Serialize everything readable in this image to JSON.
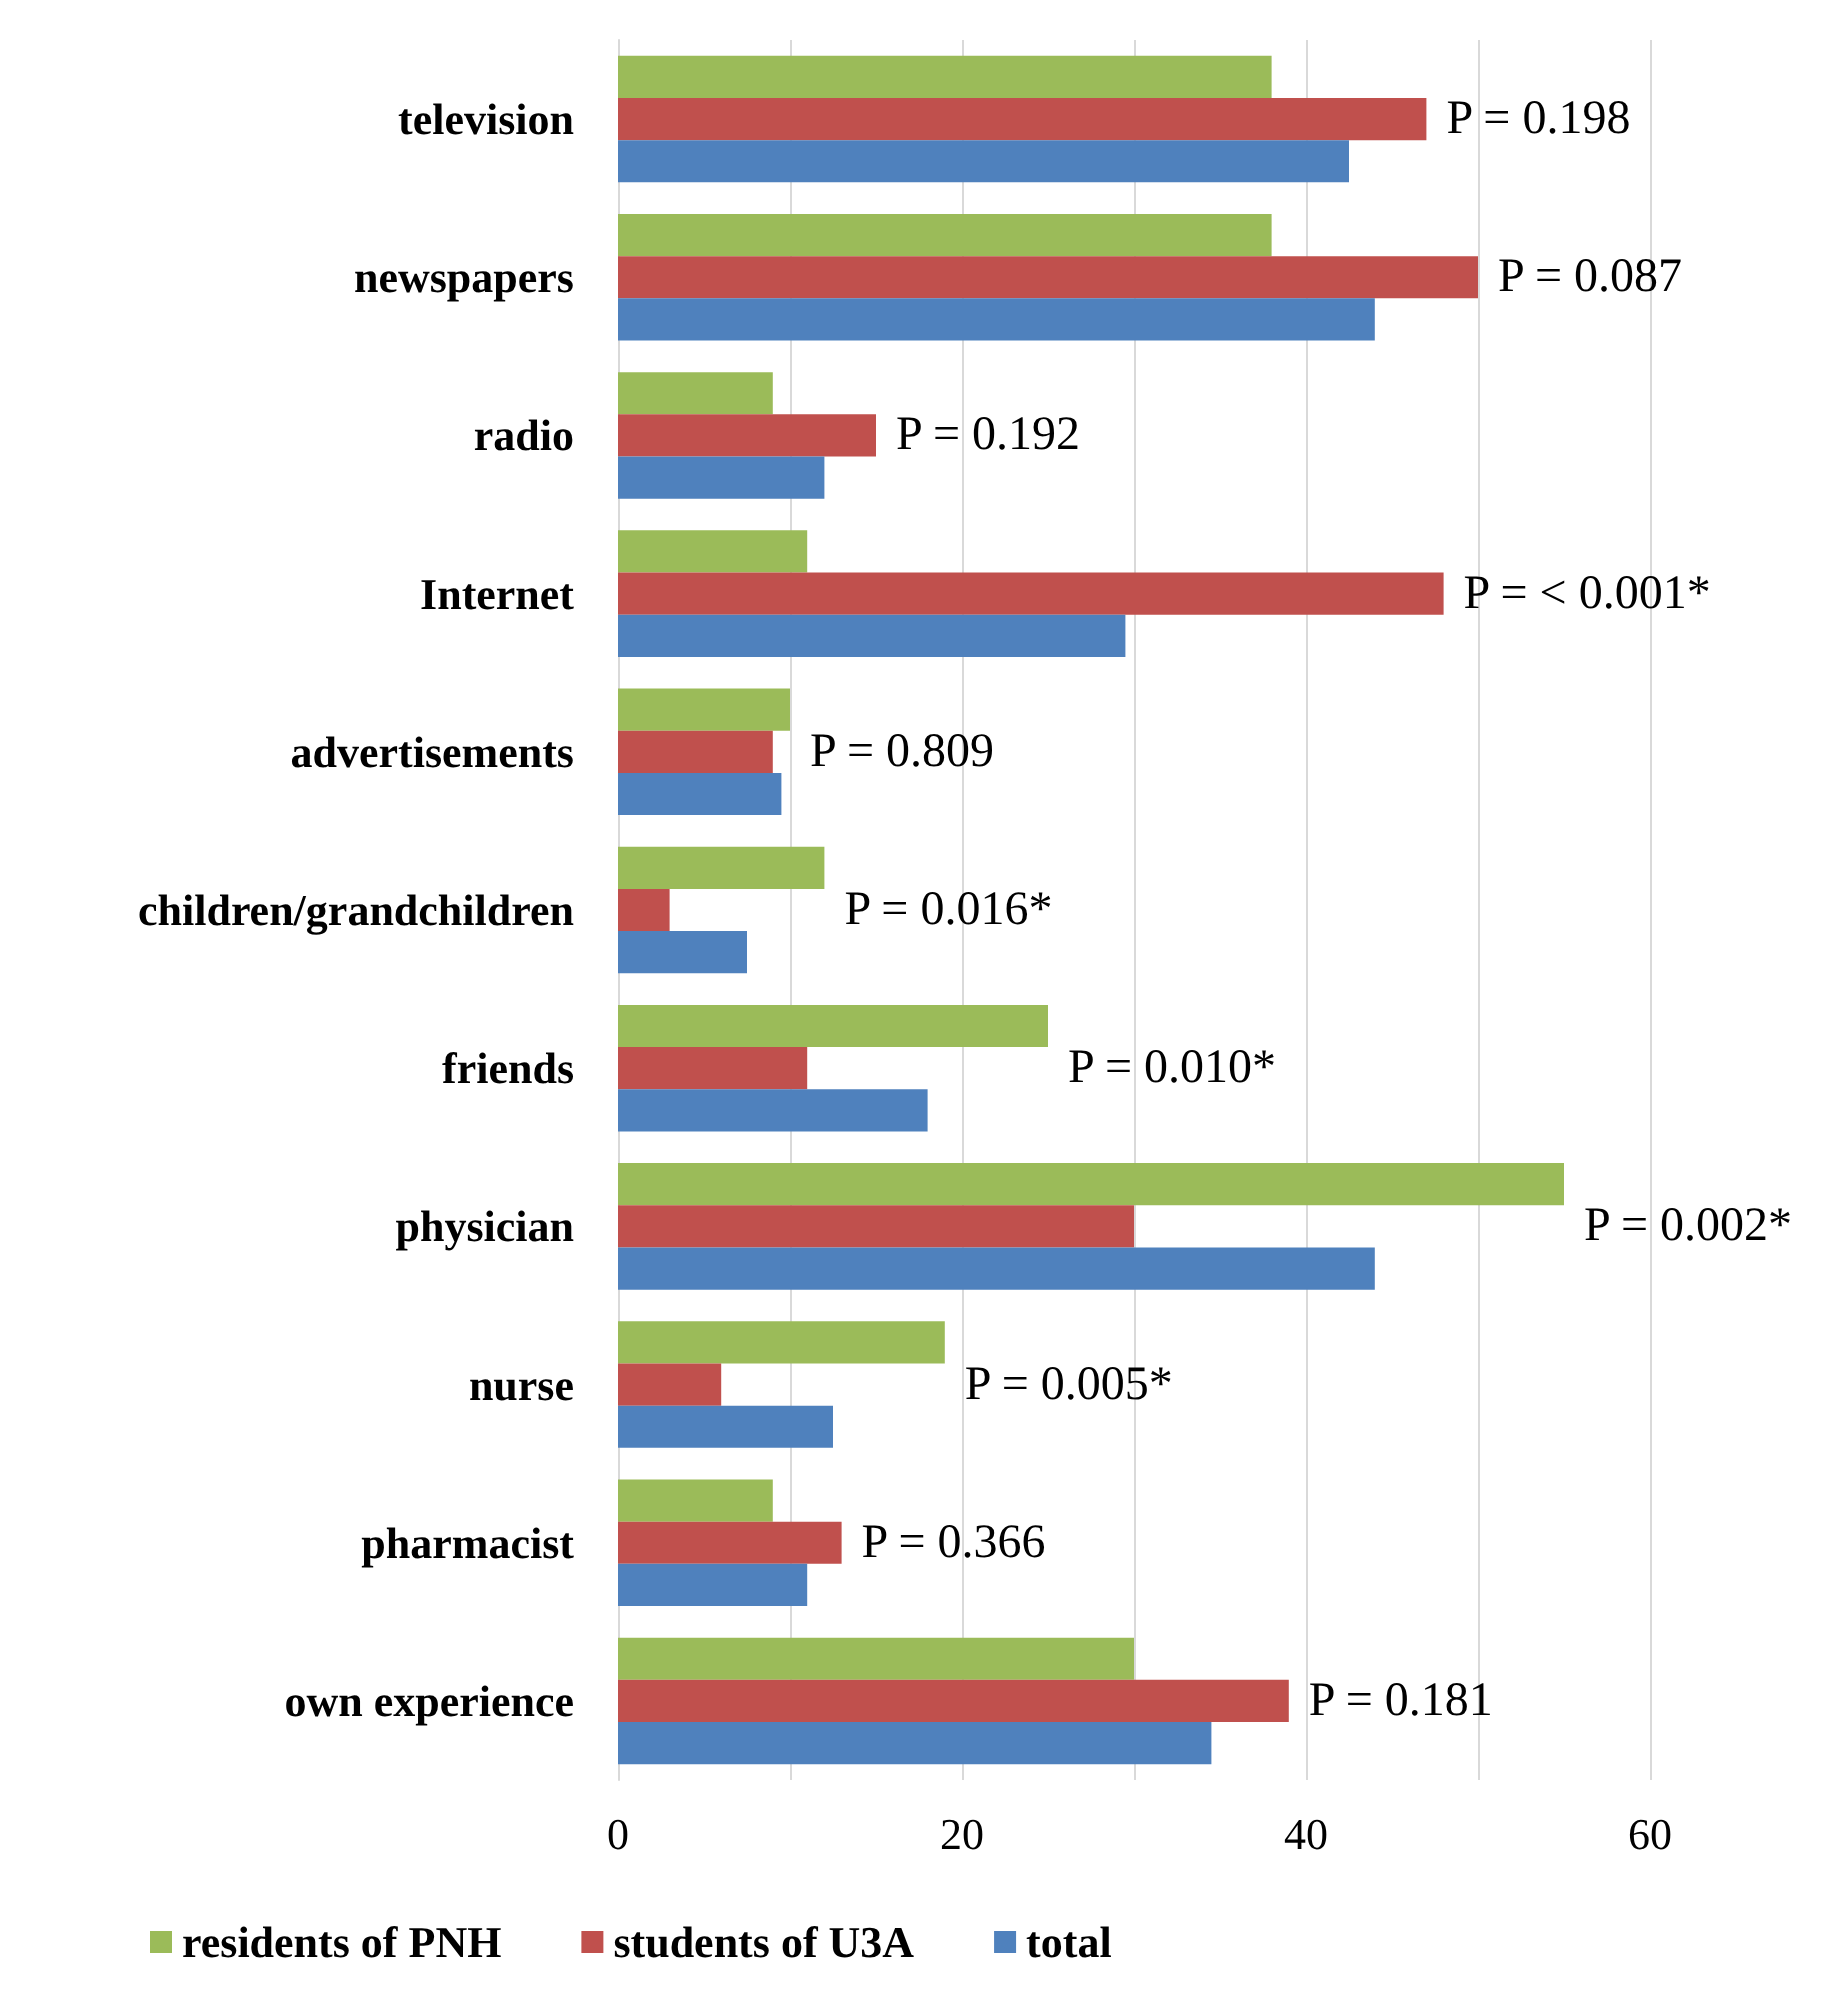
{
  "chart_data": {
    "type": "bar",
    "orientation": "horizontal",
    "categories": [
      "television",
      "newspapers",
      "radio",
      "Internet",
      "advertisements",
      "children/grandchildren",
      "friends",
      "physician",
      "nurse",
      "pharmacist",
      "own experience"
    ],
    "series": [
      {
        "name": "residents of PNH",
        "color": "#9bbb59",
        "values": [
          38,
          38,
          9,
          11,
          10,
          12,
          25,
          55,
          19,
          9,
          30
        ]
      },
      {
        "name": "students of U3A",
        "color": "#c0504d",
        "values": [
          47,
          50,
          15,
          48,
          9,
          3,
          11,
          30,
          6,
          13,
          39
        ]
      },
      {
        "name": "total",
        "color": "#4f81bd",
        "values": [
          42.5,
          44,
          12,
          29.5,
          9.5,
          7.5,
          18,
          44,
          12.5,
          11,
          34.5
        ]
      }
    ],
    "xlim": [
      0,
      60
    ],
    "xticks": [
      0,
      20,
      40,
      60
    ],
    "grid": "x",
    "legend": "bottom",
    "annotations": [
      "P = 0.198",
      "P = 0.087",
      "P = 0.192",
      "P = < 0.001*",
      "P = 0.809",
      "P = 0.016*",
      "P = 0.010*",
      "P = 0.002*",
      "P = 0.005*",
      "P = 0.366",
      "P = 0.181"
    ]
  }
}
